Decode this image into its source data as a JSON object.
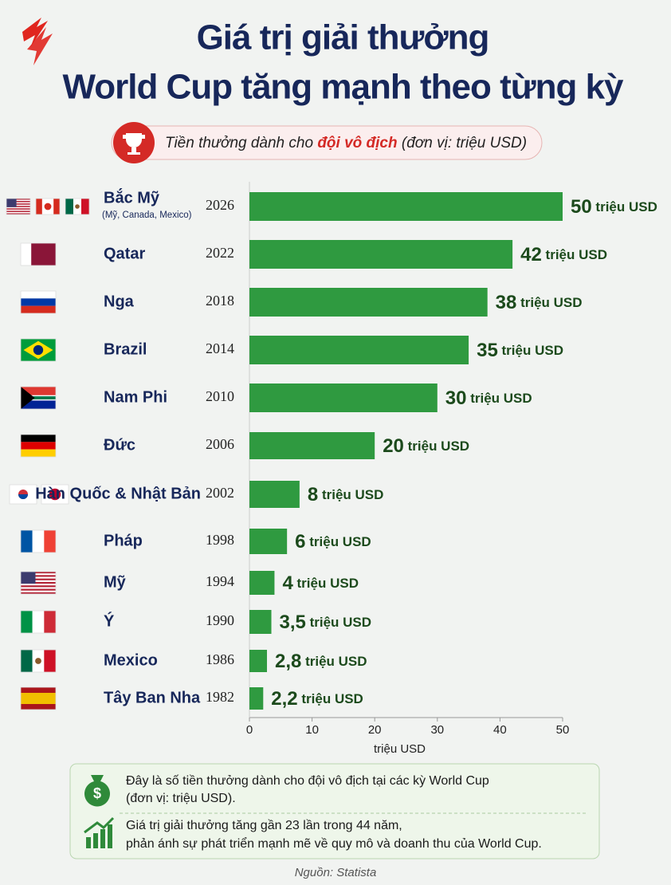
{
  "chart_data": {
    "type": "bar",
    "orientation": "horizontal",
    "title": [
      "Giá trị giải thưởng",
      "World Cup tăng mạnh theo từng kỳ"
    ],
    "subtitle": [
      "Tiền thưởng dành cho ",
      "đội vô địch",
      " (đơn vị: triệu USD)"
    ],
    "categories": [
      "Bắc Mỹ",
      "Qatar",
      "Nga",
      "Brazil",
      "Nam Phi",
      "Đức",
      "Hàn Quốc & Nhật Bản",
      "Pháp",
      "Mỹ",
      "Ý",
      "Mexico",
      "Tây Ban Nha"
    ],
    "category_sublabels": [
      "(Mỹ, Canada, Mexico)",
      null,
      null,
      null,
      null,
      null,
      null,
      null,
      null,
      null,
      null,
      null
    ],
    "years": [
      "2026",
      "2022",
      "2018",
      "2014",
      "2010",
      "2006",
      "2002",
      "1998",
      "1994",
      "1990",
      "1986",
      "1982"
    ],
    "values": [
      50,
      42,
      38,
      35,
      30,
      20,
      8,
      6,
      4,
      3.5,
      2.8,
      2.2
    ],
    "value_labels": [
      "50 triệu USD",
      "42 triệu USD",
      "38 triệu USD",
      "35 triệu USD",
      "30 triệu USD",
      "20 triệu USD",
      "8 triệu USD",
      "6 triệu USD",
      "4 triệu USD",
      "3,5 triệu USD",
      "2,8 triệu USD",
      "2,2 triệu USD"
    ],
    "color": "#2f9a40",
    "xlim": [
      0,
      50
    ],
    "xticks": [
      0,
      10,
      20,
      30,
      40,
      50
    ],
    "xlabel": "triệu USD",
    "notes": [
      [
        "Đây là số tiền thưởng dành cho đội vô địch tại các kỳ World Cup",
        "(đơn vị: triệu USD)."
      ],
      [
        "Giá trị giải thưởng tăng gần 23 lần trong 44 năm,",
        "phản ánh sự phát triển mạnh mẽ về quy mô và doanh thu của World Cup."
      ]
    ],
    "source": "Nguồn: Statista"
  }
}
